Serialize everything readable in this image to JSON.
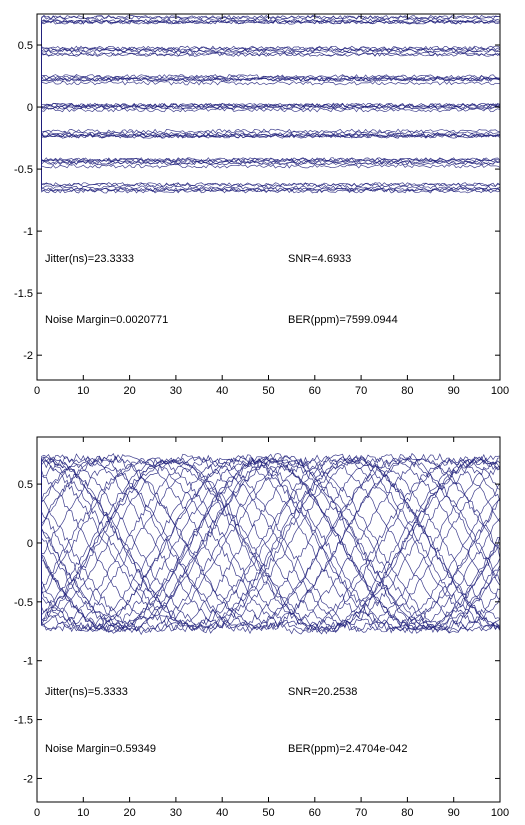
{
  "colors": {
    "trace": "#1f1f7a",
    "axes": "#000000",
    "background": "#ffffff"
  },
  "chart_data": [
    {
      "type": "line",
      "title": "",
      "xlabel": "",
      "ylabel": "",
      "xlim": [
        0,
        100
      ],
      "ylim": [
        -2.2,
        0.75
      ],
      "xticks": [
        0,
        10,
        20,
        30,
        40,
        50,
        60,
        70,
        80,
        90,
        100
      ],
      "yticks": [
        0.5,
        0,
        -0.5,
        -1,
        -1.5,
        -2
      ],
      "xtick_labels": [
        "0",
        "10",
        "20",
        "30",
        "40",
        "50",
        "60",
        "70",
        "80",
        "90",
        "100"
      ],
      "ytick_labels": [
        "0.5",
        "0",
        "-0.5",
        "-1",
        "-1.5",
        "-2"
      ],
      "grid": false,
      "eye": {
        "levels": [
          0.7,
          0.45,
          0.22,
          0.0,
          -0.22,
          -0.45,
          -0.65
        ],
        "period": 67,
        "noise": 0.015,
        "count": 42
      },
      "annotations": {
        "jitter": "Jitter(ns)=23.3333",
        "snr": "SNR=4.6933",
        "noise_margin": "Noise Margin=0.0020771",
        "ber": "BER(ppm)=7599.0944"
      }
    },
    {
      "type": "line",
      "title": "",
      "xlabel": "",
      "ylabel": "",
      "xlim": [
        0,
        100
      ],
      "ylim": [
        -2.2,
        0.9
      ],
      "xticks": [
        0,
        10,
        20,
        30,
        40,
        50,
        60,
        70,
        80,
        90,
        100
      ],
      "yticks": [
        0.5,
        0,
        -0.5,
        -1,
        -1.5,
        -2
      ],
      "xtick_labels": [
        "0",
        "10",
        "20",
        "30",
        "40",
        "50",
        "60",
        "70",
        "80",
        "90",
        "100"
      ],
      "ytick_labels": [
        "0.5",
        "0",
        "-0.5",
        "-1",
        "-1.5",
        "-2"
      ],
      "grid": false,
      "eye": {
        "levels": [
          0.72,
          -0.72
        ],
        "period": 33.3,
        "noise": 0.03,
        "count": 34
      },
      "annotations": {
        "jitter": "Jitter(ns)=5.3333",
        "snr": "SNR=20.2538",
        "noise_margin": "Noise Margin=0.59349",
        "ber": "BER(ppm)=2.4704e-042"
      }
    }
  ]
}
